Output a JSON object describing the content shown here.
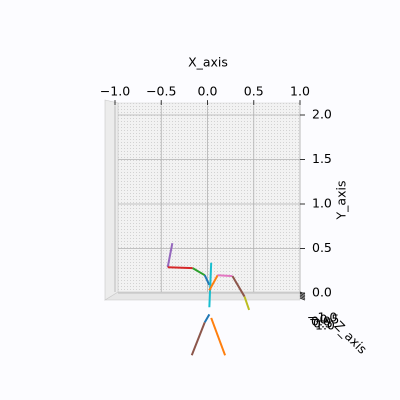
{
  "chart_data": {
    "type": "line3d",
    "xlabel": "X_axis",
    "ylabel": "Y_axis",
    "zlabel": "Z_axis",
    "xlim": [
      -1,
      1
    ],
    "ylim": [
      0,
      2.1
    ],
    "zlim": [
      -1,
      1
    ],
    "xticks": [
      {
        "value": -1,
        "label": "−1.0"
      },
      {
        "value": -0.5,
        "label": "−0.5"
      },
      {
        "value": 0,
        "label": "0.0"
      },
      {
        "value": 0.5,
        "label": "0.5"
      },
      {
        "value": 1,
        "label": "1.0"
      }
    ],
    "yticks": [
      {
        "value": 0,
        "label": "0.0"
      },
      {
        "value": 0.5,
        "label": "0.5"
      },
      {
        "value": 1,
        "label": "1.0"
      },
      {
        "value": 1.5,
        "label": "1.5"
      },
      {
        "value": 2,
        "label": "2.0"
      }
    ],
    "zticks": [
      {
        "value": -1,
        "label": "−1.0"
      },
      {
        "value": -0.5,
        "label": "−0.5"
      },
      {
        "value": 0,
        "label": "0.0"
      },
      {
        "value": 0.5,
        "label": "0.5"
      },
      {
        "value": 1,
        "label": "1.0"
      }
    ],
    "grid": true,
    "series": [
      {
        "color": "#9467bd",
        "x": [
          -0.38,
          -0.43
        ],
        "values": [
          0.56,
          0.29
        ]
      },
      {
        "color": "#d62728",
        "x": [
          -0.43,
          -0.16
        ],
        "values": [
          0.29,
          0.28
        ]
      },
      {
        "color": "#2ca02c",
        "x": [
          -0.16,
          -0.03
        ],
        "values": [
          0.28,
          0.2
        ]
      },
      {
        "color": "#1f77b4",
        "x": [
          -0.03,
          0.02
        ],
        "values": [
          0.2,
          0.09
        ]
      },
      {
        "color": "#17becf",
        "x": [
          0.04,
          0.02
        ],
        "values": [
          0.34,
          -0.16
        ]
      },
      {
        "color": "#ff7f0e",
        "x": [
          0.02,
          0.11
        ],
        "values": [
          0.03,
          0.2
        ]
      },
      {
        "color": "#e377c2",
        "x": [
          0.11,
          0.27
        ],
        "values": [
          0.2,
          0.19
        ]
      },
      {
        "color": "#8c564b",
        "x": [
          0.27,
          0.4
        ],
        "values": [
          0.19,
          -0.04
        ]
      },
      {
        "color": "#bcbd22",
        "x": [
          0.4,
          0.45
        ],
        "values": [
          -0.04,
          -0.19
        ]
      },
      {
        "color": "#1f77b4",
        "x": [
          0.02,
          -0.03
        ],
        "values": [
          -0.24,
          -0.33
        ]
      },
      {
        "color": "#8c564b",
        "x": [
          -0.03,
          -0.17
        ],
        "values": [
          -0.33,
          -0.7
        ]
      },
      {
        "color": "#ff7f0e",
        "x": [
          0.04,
          0.19
        ],
        "values": [
          -0.28,
          -0.7
        ]
      }
    ]
  }
}
